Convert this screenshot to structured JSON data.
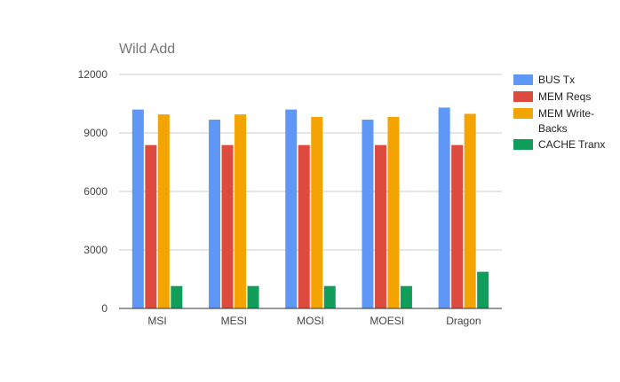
{
  "chart_data": {
    "type": "bar",
    "title": "Wild Add",
    "categories": [
      "MSI",
      "MESI",
      "MOSI",
      "MOESI",
      "Dragon"
    ],
    "series": [
      {
        "name": "BUS Tx",
        "color": "#5f97f6",
        "values": [
          10200,
          9680,
          10200,
          9680,
          10300
        ]
      },
      {
        "name": "MEM Reqs",
        "color": "#dd4b3e",
        "values": [
          8380,
          8380,
          8380,
          8380,
          8380
        ]
      },
      {
        "name": "MEM Write-Backs",
        "legend_lines": [
          "MEM Write-",
          "Backs"
        ],
        "color": "#f4a400",
        "values": [
          9950,
          9950,
          9820,
          9820,
          9980
        ]
      },
      {
        "name": "CACHE Tranx",
        "color": "#119d5a",
        "values": [
          1150,
          1150,
          1150,
          1150,
          1880
        ]
      }
    ],
    "yticks": [
      0,
      3000,
      6000,
      9000,
      12000
    ],
    "ylim": [
      0,
      12000
    ],
    "xlabel": "",
    "ylabel": "",
    "grid": true,
    "legend_position": "right"
  }
}
